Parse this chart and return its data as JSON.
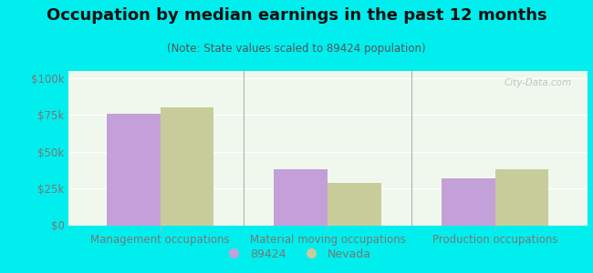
{
  "title": "Occupation by median earnings in the past 12 months",
  "subtitle": "(Note: State values scaled to 89424 population)",
  "categories": [
    "Management occupations",
    "Material moving occupations",
    "Production occupations"
  ],
  "bar_89424": [
    76000,
    38000,
    32000
  ],
  "bar_nevada": [
    80000,
    29000,
    38000
  ],
  "color_89424": "#c4a0d8",
  "color_nevada": "#c8cc9a",
  "background_outer": "#00eeee",
  "yticks": [
    0,
    25000,
    50000,
    75000,
    100000
  ],
  "ytick_labels": [
    "$0",
    "$25k",
    "$50k",
    "$75k",
    "$100k"
  ],
  "ylim": [
    0,
    105000
  ],
  "bar_width": 0.32,
  "legend_label_89424": "89424",
  "legend_label_nevada": "Nevada",
  "title_fontsize": 13,
  "subtitle_fontsize": 8.5,
  "axis_fontsize": 8.5,
  "legend_fontsize": 9,
  "title_color": "#111111",
  "subtitle_color": "#555555",
  "tick_color": "#777777",
  "separator_color": "#b0b0b0",
  "grid_color": "#dddddd"
}
